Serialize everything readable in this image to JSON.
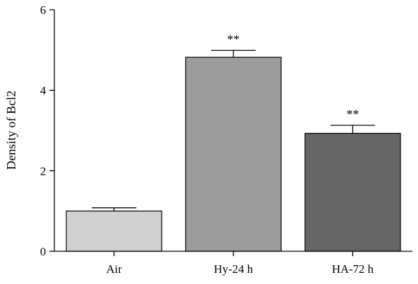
{
  "chart_data": {
    "type": "bar",
    "ylabel": "Density of Bcl2",
    "ylim": [
      0,
      6
    ],
    "yticks": [
      0,
      2,
      4,
      6
    ],
    "grid": false,
    "categories": [
      "Air",
      "Hy-24 h",
      "HA-72 h"
    ],
    "values": [
      1.0,
      4.82,
      2.93
    ],
    "errors": [
      0.08,
      0.17,
      0.2
    ],
    "annotations": [
      "",
      "**",
      "**"
    ],
    "colors": [
      "#d0d0d0",
      "#9c9c9c",
      "#666666"
    ]
  }
}
